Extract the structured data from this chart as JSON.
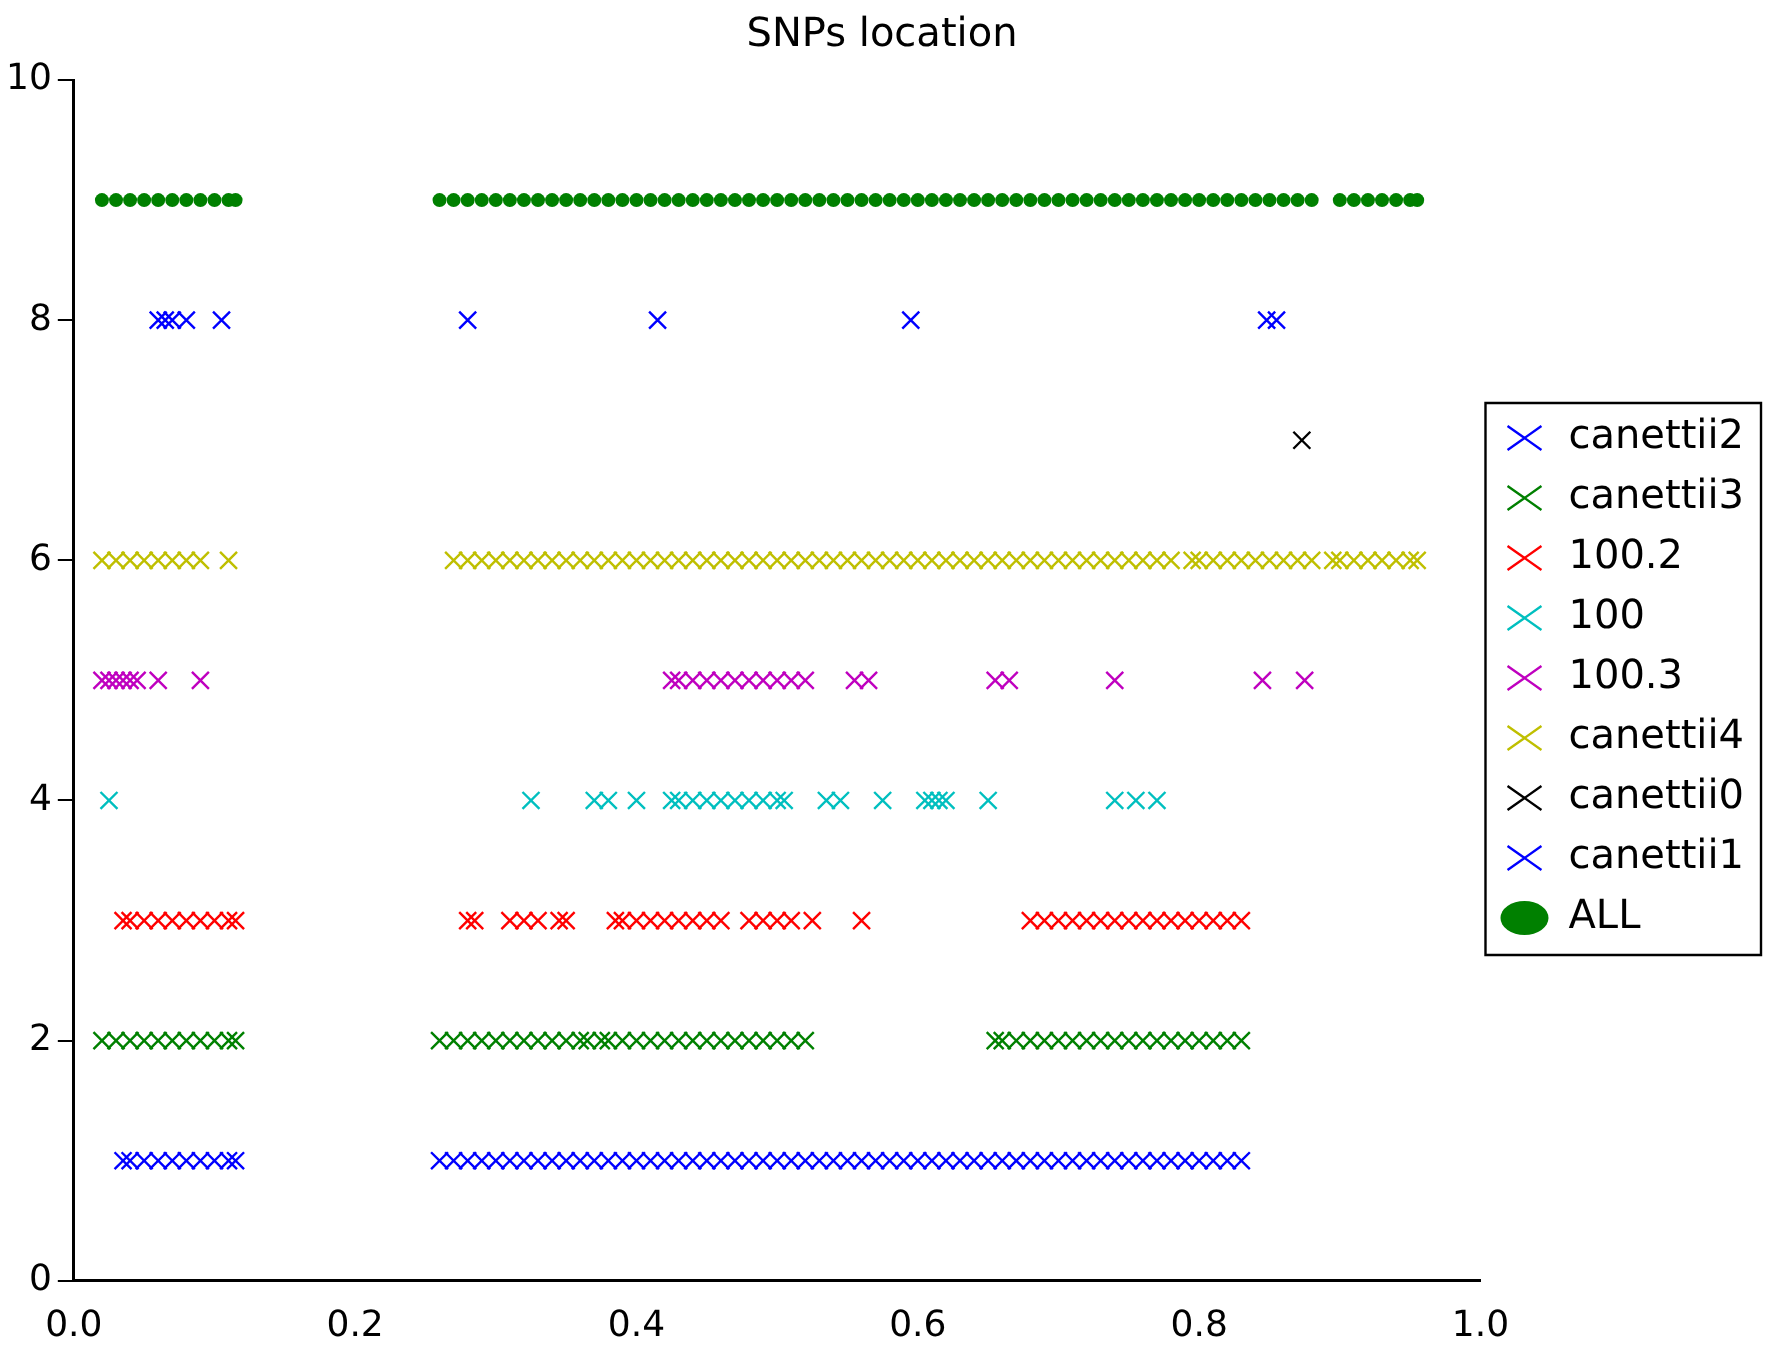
{
  "chart_data": {
    "type": "scatter",
    "title": "SNPs location",
    "xlim": [
      0,
      1
    ],
    "xticks": [
      {
        "value": 0,
        "label": "0.0"
      },
      {
        "value": 0.2,
        "label": "0.2"
      },
      {
        "value": 0.4,
        "label": "0.4"
      },
      {
        "value": 0.6,
        "label": "0.6"
      },
      {
        "value": 0.8,
        "label": "0.8"
      },
      {
        "value": 1,
        "label": "1.0"
      }
    ],
    "ylim": [
      0,
      10
    ],
    "yticks": [
      0,
      2,
      4,
      6,
      8,
      10
    ],
    "grid": false,
    "legend": "right",
    "series": [
      {
        "name": "canettii2",
        "color": "#0000ff",
        "marker": "cross",
        "x": [
          0.06,
          0.065,
          0.07,
          0.08,
          0.105,
          0.28,
          0.415,
          0.595,
          0.848,
          0.855
        ],
        "values": [
          8,
          8,
          8,
          8,
          8,
          8,
          8,
          8,
          8,
          8
        ]
      },
      {
        "name": "canettii3",
        "color": "#008000",
        "marker": "cross",
        "x": [
          0.02,
          0.03,
          0.04,
          0.05,
          0.06,
          0.07,
          0.08,
          0.09,
          0.1,
          0.11,
          0.115,
          0.26,
          0.27,
          0.28,
          0.29,
          0.3,
          0.31,
          0.32,
          0.33,
          0.34,
          0.35,
          0.36,
          0.365,
          0.375,
          0.38,
          0.39,
          0.4,
          0.41,
          0.42,
          0.43,
          0.44,
          0.45,
          0.46,
          0.47,
          0.48,
          0.49,
          0.5,
          0.51,
          0.52,
          0.655,
          0.66,
          0.67,
          0.68,
          0.69,
          0.7,
          0.71,
          0.72,
          0.73,
          0.74,
          0.75,
          0.76,
          0.77,
          0.78,
          0.79,
          0.8,
          0.81,
          0.82,
          0.83
        ],
        "values": [
          2,
          2,
          2,
          2,
          2,
          2,
          2,
          2,
          2,
          2,
          2,
          2,
          2,
          2,
          2,
          2,
          2,
          2,
          2,
          2,
          2,
          2,
          2,
          2,
          2,
          2,
          2,
          2,
          2,
          2,
          2,
          2,
          2,
          2,
          2,
          2,
          2,
          2,
          2,
          2,
          2,
          2,
          2,
          2,
          2,
          2,
          2,
          2,
          2,
          2,
          2,
          2,
          2,
          2,
          2,
          2,
          2,
          2
        ]
      },
      {
        "name": "100.2",
        "color": "#ff0000",
        "marker": "cross",
        "x": [
          0.035,
          0.04,
          0.05,
          0.06,
          0.07,
          0.08,
          0.09,
          0.1,
          0.11,
          0.115,
          0.28,
          0.285,
          0.31,
          0.32,
          0.33,
          0.345,
          0.35,
          0.385,
          0.39,
          0.4,
          0.41,
          0.42,
          0.43,
          0.44,
          0.45,
          0.46,
          0.48,
          0.49,
          0.5,
          0.51,
          0.525,
          0.56,
          0.68,
          0.69,
          0.7,
          0.71,
          0.72,
          0.73,
          0.74,
          0.75,
          0.76,
          0.77,
          0.78,
          0.79,
          0.8,
          0.81,
          0.82,
          0.83
        ],
        "values": [
          3,
          3,
          3,
          3,
          3,
          3,
          3,
          3,
          3,
          3,
          3,
          3,
          3,
          3,
          3,
          3,
          3,
          3,
          3,
          3,
          3,
          3,
          3,
          3,
          3,
          3,
          3,
          3,
          3,
          3,
          3,
          3,
          3,
          3,
          3,
          3,
          3,
          3,
          3,
          3,
          3,
          3,
          3,
          3,
          3,
          3,
          3,
          3
        ]
      },
      {
        "name": "100",
        "color": "#00bfbf",
        "marker": "cross",
        "x": [
          0.025,
          0.325,
          0.37,
          0.38,
          0.4,
          0.425,
          0.43,
          0.44,
          0.45,
          0.46,
          0.47,
          0.48,
          0.49,
          0.5,
          0.505,
          0.535,
          0.545,
          0.575,
          0.605,
          0.61,
          0.615,
          0.62,
          0.65,
          0.74,
          0.755,
          0.77
        ],
        "values": [
          4,
          4,
          4,
          4,
          4,
          4,
          4,
          4,
          4,
          4,
          4,
          4,
          4,
          4,
          4,
          4,
          4,
          4,
          4,
          4,
          4,
          4,
          4,
          4,
          4,
          4
        ]
      },
      {
        "name": "100.3",
        "color": "#bf00bf",
        "marker": "cross",
        "x": [
          0.02,
          0.025,
          0.03,
          0.035,
          0.04,
          0.045,
          0.06,
          0.09,
          0.425,
          0.43,
          0.44,
          0.45,
          0.46,
          0.47,
          0.48,
          0.49,
          0.5,
          0.51,
          0.52,
          0.555,
          0.565,
          0.655,
          0.665,
          0.74,
          0.845,
          0.875
        ],
        "values": [
          5,
          5,
          5,
          5,
          5,
          5,
          5,
          5,
          5,
          5,
          5,
          5,
          5,
          5,
          5,
          5,
          5,
          5,
          5,
          5,
          5,
          5,
          5,
          5,
          5,
          5
        ]
      },
      {
        "name": "canettii4",
        "color": "#bfbf00",
        "marker": "cross",
        "x": [
          0.02,
          0.03,
          0.04,
          0.05,
          0.06,
          0.07,
          0.08,
          0.09,
          0.11,
          0.27,
          0.28,
          0.29,
          0.3,
          0.31,
          0.32,
          0.33,
          0.34,
          0.35,
          0.36,
          0.37,
          0.38,
          0.39,
          0.4,
          0.41,
          0.42,
          0.43,
          0.44,
          0.45,
          0.46,
          0.47,
          0.48,
          0.49,
          0.5,
          0.51,
          0.52,
          0.53,
          0.54,
          0.55,
          0.56,
          0.57,
          0.58,
          0.59,
          0.6,
          0.61,
          0.62,
          0.63,
          0.64,
          0.65,
          0.66,
          0.67,
          0.68,
          0.69,
          0.7,
          0.71,
          0.72,
          0.73,
          0.74,
          0.75,
          0.76,
          0.77,
          0.78,
          0.795,
          0.8,
          0.81,
          0.82,
          0.83,
          0.84,
          0.85,
          0.86,
          0.87,
          0.88,
          0.895,
          0.9,
          0.91,
          0.92,
          0.93,
          0.94,
          0.95,
          0.955
        ],
        "values": [
          6,
          6,
          6,
          6,
          6,
          6,
          6,
          6,
          6,
          6,
          6,
          6,
          6,
          6,
          6,
          6,
          6,
          6,
          6,
          6,
          6,
          6,
          6,
          6,
          6,
          6,
          6,
          6,
          6,
          6,
          6,
          6,
          6,
          6,
          6,
          6,
          6,
          6,
          6,
          6,
          6,
          6,
          6,
          6,
          6,
          6,
          6,
          6,
          6,
          6,
          6,
          6,
          6,
          6,
          6,
          6,
          6,
          6,
          6,
          6,
          6,
          6,
          6,
          6,
          6,
          6,
          6,
          6,
          6,
          6,
          6,
          6,
          6,
          6,
          6,
          6,
          6,
          6,
          6
        ]
      },
      {
        "name": "canettii0",
        "color": "#000000",
        "marker": "cross",
        "x": [
          0.873
        ],
        "values": [
          7
        ]
      },
      {
        "name": "canettii1",
        "color": "#0000ff",
        "marker": "cross",
        "x": [
          0.035,
          0.04,
          0.05,
          0.06,
          0.07,
          0.08,
          0.09,
          0.1,
          0.11,
          0.115,
          0.26,
          0.27,
          0.28,
          0.29,
          0.3,
          0.31,
          0.32,
          0.33,
          0.34,
          0.35,
          0.36,
          0.37,
          0.38,
          0.39,
          0.4,
          0.41,
          0.42,
          0.43,
          0.44,
          0.45,
          0.46,
          0.47,
          0.48,
          0.49,
          0.5,
          0.51,
          0.52,
          0.53,
          0.54,
          0.55,
          0.56,
          0.57,
          0.58,
          0.59,
          0.6,
          0.61,
          0.62,
          0.63,
          0.64,
          0.65,
          0.66,
          0.67,
          0.68,
          0.69,
          0.7,
          0.71,
          0.72,
          0.73,
          0.74,
          0.75,
          0.76,
          0.77,
          0.78,
          0.79,
          0.8,
          0.81,
          0.82,
          0.83
        ],
        "values": [
          1,
          1,
          1,
          1,
          1,
          1,
          1,
          1,
          1,
          1,
          1,
          1,
          1,
          1,
          1,
          1,
          1,
          1,
          1,
          1,
          1,
          1,
          1,
          1,
          1,
          1,
          1,
          1,
          1,
          1,
          1,
          1,
          1,
          1,
          1,
          1,
          1,
          1,
          1,
          1,
          1,
          1,
          1,
          1,
          1,
          1,
          1,
          1,
          1,
          1,
          1,
          1,
          1,
          1,
          1,
          1,
          1,
          1,
          1,
          1,
          1,
          1,
          1,
          1,
          1,
          1,
          1,
          1
        ]
      },
      {
        "name": "ALL",
        "color": "#008000",
        "marker": "circle",
        "x": [
          0.02,
          0.03,
          0.04,
          0.05,
          0.06,
          0.07,
          0.08,
          0.09,
          0.1,
          0.11,
          0.115,
          0.26,
          0.27,
          0.28,
          0.29,
          0.3,
          0.31,
          0.32,
          0.33,
          0.34,
          0.35,
          0.36,
          0.37,
          0.38,
          0.39,
          0.4,
          0.41,
          0.42,
          0.43,
          0.44,
          0.45,
          0.46,
          0.47,
          0.48,
          0.49,
          0.5,
          0.51,
          0.52,
          0.53,
          0.54,
          0.55,
          0.56,
          0.57,
          0.58,
          0.59,
          0.6,
          0.61,
          0.62,
          0.63,
          0.64,
          0.65,
          0.66,
          0.67,
          0.68,
          0.69,
          0.7,
          0.71,
          0.72,
          0.73,
          0.74,
          0.75,
          0.76,
          0.77,
          0.78,
          0.79,
          0.8,
          0.81,
          0.82,
          0.83,
          0.84,
          0.85,
          0.86,
          0.87,
          0.88,
          0.9,
          0.91,
          0.92,
          0.93,
          0.94,
          0.95,
          0.955
        ],
        "values": [
          9,
          9,
          9,
          9,
          9,
          9,
          9,
          9,
          9,
          9,
          9,
          9,
          9,
          9,
          9,
          9,
          9,
          9,
          9,
          9,
          9,
          9,
          9,
          9,
          9,
          9,
          9,
          9,
          9,
          9,
          9,
          9,
          9,
          9,
          9,
          9,
          9,
          9,
          9,
          9,
          9,
          9,
          9,
          9,
          9,
          9,
          9,
          9,
          9,
          9,
          9,
          9,
          9,
          9,
          9,
          9,
          9,
          9,
          9,
          9,
          9,
          9,
          9,
          9,
          9,
          9,
          9,
          9,
          9,
          9,
          9,
          9,
          9,
          9,
          9,
          9,
          9,
          9,
          9,
          9,
          9
        ]
      }
    ]
  }
}
